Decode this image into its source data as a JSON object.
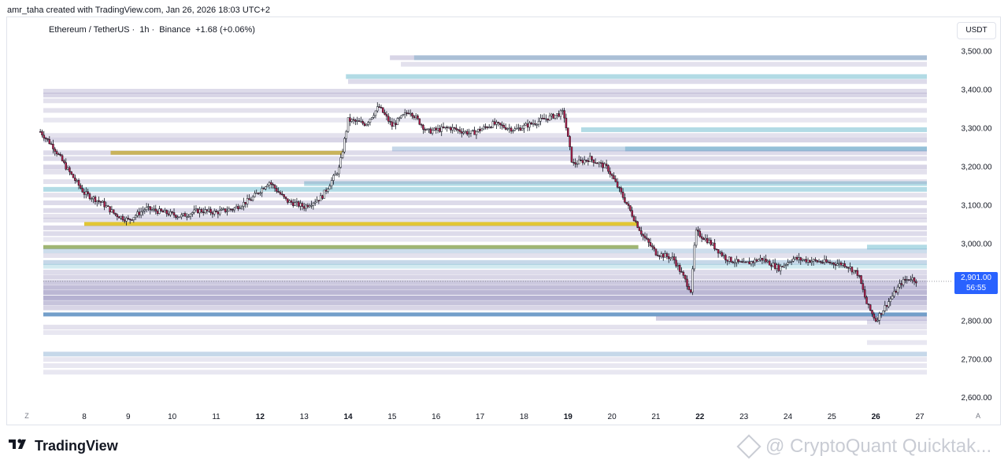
{
  "credit": "amr_taha created with TradingView.com, Jan 26, 2026 18:03 UTC+2",
  "legend": {
    "symbol": "Ethereum / TetherUS",
    "interval": "1h",
    "exchange": "Binance",
    "change": "+1.68 (+0.06%)"
  },
  "currency_label": "USDT",
  "price_tag": {
    "price": "2,901.00",
    "countdown": "56:55"
  },
  "axis_buttons": {
    "left": "Z",
    "right": "A"
  },
  "footer": {
    "brand": "TradingView",
    "watermark": "@ CryptoQuant Quicktak..."
  },
  "colors": {
    "up": "#26a69a",
    "down": "#b71c4a",
    "candle": "#131722",
    "liq_purple": "#8e87b8",
    "liq_blue": "#5b8ec1",
    "liq_teal": "#7ec3d3",
    "liq_yellow": "#e0c328",
    "liq_olive": "#8fa85a",
    "accent": "#2962ff"
  },
  "chart_data": {
    "type": "candlestick",
    "title": "Ethereum / TetherUS",
    "ylabel": "USDT",
    "ylim": [
      2560,
      3560
    ],
    "y_ticks": [
      {
        "value": 3500,
        "label": "3,500.00"
      },
      {
        "value": 3400,
        "label": "3,400.00"
      },
      {
        "value": 3300,
        "label": "3,300.00"
      },
      {
        "value": 3200,
        "label": "3,200.00"
      },
      {
        "value": 3100,
        "label": "3,100.00"
      },
      {
        "value": 3000,
        "label": "3,000.00"
      },
      {
        "value": 2800,
        "label": "2,800.00"
      },
      {
        "value": 2700,
        "label": "2,700.00"
      },
      {
        "value": 2600,
        "label": "2,600.00"
      }
    ],
    "x_ticks": [
      {
        "label": "8",
        "bold": false
      },
      {
        "label": "9",
        "bold": false
      },
      {
        "label": "10",
        "bold": false
      },
      {
        "label": "11",
        "bold": false
      },
      {
        "label": "12",
        "bold": true
      },
      {
        "label": "13",
        "bold": false
      },
      {
        "label": "14",
        "bold": true
      },
      {
        "label": "15",
        "bold": false
      },
      {
        "label": "16",
        "bold": false
      },
      {
        "label": "17",
        "bold": false
      },
      {
        "label": "18",
        "bold": false
      },
      {
        "label": "19",
        "bold": true
      },
      {
        "label": "20",
        "bold": false
      },
      {
        "label": "21",
        "bold": false
      },
      {
        "label": "22",
        "bold": true
      },
      {
        "label": "23",
        "bold": false
      },
      {
        "label": "24",
        "bold": false
      },
      {
        "label": "25",
        "bold": false
      },
      {
        "label": "26",
        "bold": true
      },
      {
        "label": "27",
        "bold": false
      }
    ],
    "x_range_days": [
      7.0,
      27.2
    ],
    "last_price": 2901.0,
    "price_path": [
      [
        7.0,
        3290
      ],
      [
        7.3,
        3250
      ],
      [
        7.6,
        3195
      ],
      [
        8.0,
        3130
      ],
      [
        8.4,
        3105
      ],
      [
        8.7,
        3075
      ],
      [
        9.0,
        3060
      ],
      [
        9.4,
        3090
      ],
      [
        9.8,
        3080
      ],
      [
        10.2,
        3070
      ],
      [
        10.6,
        3085
      ],
      [
        11.0,
        3080
      ],
      [
        11.4,
        3090
      ],
      [
        11.8,
        3115
      ],
      [
        12.2,
        3160
      ],
      [
        12.6,
        3110
      ],
      [
        13.0,
        3095
      ],
      [
        13.4,
        3120
      ],
      [
        13.8,
        3195
      ],
      [
        14.0,
        3320
      ],
      [
        14.4,
        3310
      ],
      [
        14.7,
        3355
      ],
      [
        15.0,
        3305
      ],
      [
        15.4,
        3345
      ],
      [
        15.8,
        3290
      ],
      [
        16.3,
        3300
      ],
      [
        16.8,
        3285
      ],
      [
        17.3,
        3310
      ],
      [
        17.8,
        3295
      ],
      [
        18.4,
        3320
      ],
      [
        18.9,
        3340
      ],
      [
        19.1,
        3205
      ],
      [
        19.5,
        3220
      ],
      [
        19.9,
        3195
      ],
      [
        20.3,
        3110
      ],
      [
        20.7,
        3020
      ],
      [
        21.0,
        2975
      ],
      [
        21.4,
        2960
      ],
      [
        21.8,
        2875
      ],
      [
        21.9,
        3030
      ],
      [
        22.2,
        3005
      ],
      [
        22.6,
        2960
      ],
      [
        23.0,
        2945
      ],
      [
        23.4,
        2960
      ],
      [
        23.8,
        2935
      ],
      [
        24.1,
        2960
      ],
      [
        24.5,
        2955
      ],
      [
        24.9,
        2950
      ],
      [
        25.3,
        2945
      ],
      [
        25.6,
        2920
      ],
      [
        25.8,
        2840
      ],
      [
        26.0,
        2800
      ],
      [
        26.3,
        2850
      ],
      [
        26.6,
        2900
      ],
      [
        26.8,
        2910
      ],
      [
        26.95,
        2901
      ]
    ],
    "liquidity_bands": [
      {
        "price": 3482,
        "x0": 15.5,
        "color": "teal",
        "opacity": 0.55
      },
      {
        "price": 3482,
        "x0": 14.95,
        "color": "purple",
        "opacity": 0.35
      },
      {
        "price": 3465,
        "x0": 15.2,
        "color": "purple",
        "opacity": 0.25
      },
      {
        "price": 3433,
        "x0": 13.95,
        "color": "teal",
        "opacity": 0.6
      },
      {
        "price": 3420,
        "x0": 14.0,
        "color": "purple",
        "opacity": 0.3
      },
      {
        "price": 3395,
        "x0": 7.0,
        "color": "purple",
        "opacity": 0.3
      },
      {
        "price": 3385,
        "x0": 7.0,
        "color": "purple",
        "opacity": 0.35
      },
      {
        "price": 3370,
        "x0": 7.0,
        "color": "purple",
        "opacity": 0.25
      },
      {
        "price": 3345,
        "x0": 7.0,
        "color": "purple",
        "opacity": 0.25
      },
      {
        "price": 3320,
        "x0": 7.0,
        "color": "purple",
        "opacity": 0.2
      },
      {
        "price": 3295,
        "x0": 19.3,
        "color": "teal",
        "opacity": 0.6
      },
      {
        "price": 3280,
        "x0": 7.0,
        "color": "purple",
        "opacity": 0.25
      },
      {
        "price": 3268,
        "x0": 7.0,
        "color": "purple",
        "opacity": 0.35
      },
      {
        "price": 3245,
        "x0": 20.3,
        "color": "teal",
        "opacity": 0.6
      },
      {
        "price": 3245,
        "x0": 15.0,
        "color": "blue",
        "opacity": 0.35
      },
      {
        "price": 3235,
        "x0": 8.6,
        "x1": 13.9,
        "color": "yellow",
        "opacity": 0.95
      },
      {
        "price": 3235,
        "x0": 7.0,
        "color": "purple",
        "opacity": 0.3
      },
      {
        "price": 3220,
        "x0": 7.0,
        "color": "purple",
        "opacity": 0.3
      },
      {
        "price": 3198,
        "x0": 7.0,
        "color": "purple",
        "opacity": 0.35
      },
      {
        "price": 3185,
        "x0": 7.0,
        "color": "purple",
        "opacity": 0.25
      },
      {
        "price": 3155,
        "x0": 13.0,
        "color": "teal",
        "opacity": 0.6
      },
      {
        "price": 3160,
        "x0": 7.0,
        "color": "purple",
        "opacity": 0.25
      },
      {
        "price": 3140,
        "x0": 7.0,
        "color": "teal",
        "opacity": 0.6
      },
      {
        "price": 3125,
        "x0": 7.0,
        "color": "purple",
        "opacity": 0.25
      },
      {
        "price": 3105,
        "x0": 7.0,
        "color": "purple",
        "opacity": 0.3
      },
      {
        "price": 3085,
        "x0": 7.0,
        "color": "purple",
        "opacity": 0.3
      },
      {
        "price": 3070,
        "x0": 7.0,
        "color": "purple",
        "opacity": 0.25
      },
      {
        "price": 3060,
        "x0": 7.0,
        "color": "purple",
        "opacity": 0.25
      },
      {
        "price": 3050,
        "x0": 8.0,
        "x1": 20.6,
        "color": "yellow",
        "opacity": 0.95
      },
      {
        "price": 3040,
        "x0": 7.0,
        "color": "purple",
        "opacity": 0.35
      },
      {
        "price": 3025,
        "x0": 7.0,
        "color": "purple",
        "opacity": 0.3
      },
      {
        "price": 3010,
        "x0": 7.0,
        "color": "purple",
        "opacity": 0.2
      },
      {
        "price": 2990,
        "x0": 25.8,
        "color": "teal",
        "opacity": 0.6
      },
      {
        "price": 2990,
        "x0": 7.0,
        "x1": 20.6,
        "color": "olive",
        "opacity": 0.85
      },
      {
        "price": 2980,
        "x0": 7.0,
        "color": "blue",
        "opacity": 0.3
      },
      {
        "price": 2968,
        "x0": 7.0,
        "color": "purple",
        "opacity": 0.25
      },
      {
        "price": 2950,
        "x0": 7.0,
        "color": "blue",
        "opacity": 0.35
      },
      {
        "price": 2940,
        "x0": 7.0,
        "color": "teal",
        "opacity": 0.35
      },
      {
        "price": 2925,
        "x0": 7.0,
        "color": "purple",
        "opacity": 0.3
      },
      {
        "price": 2912,
        "x0": 7.0,
        "color": "purple",
        "opacity": 0.35
      },
      {
        "price": 2898,
        "x0": 7.0,
        "color": "purple",
        "opacity": 0.45
      },
      {
        "price": 2885,
        "x0": 7.0,
        "color": "purple",
        "opacity": 0.55
      },
      {
        "price": 2872,
        "x0": 7.0,
        "color": "purple",
        "opacity": 0.6
      },
      {
        "price": 2858,
        "x0": 7.0,
        "color": "purple",
        "opacity": 0.65
      },
      {
        "price": 2845,
        "x0": 7.0,
        "color": "purple",
        "opacity": 0.5
      },
      {
        "price": 2832,
        "x0": 7.0,
        "color": "purple",
        "opacity": 0.35
      },
      {
        "price": 2815,
        "x0": 7.0,
        "color": "blue",
        "opacity": 0.85
      },
      {
        "price": 2805,
        "x0": 21.0,
        "color": "purple",
        "opacity": 0.4
      },
      {
        "price": 2795,
        "x0": 25.8,
        "color": "purple",
        "opacity": 0.3
      },
      {
        "price": 2782,
        "x0": 7.0,
        "color": "purple",
        "opacity": 0.25
      },
      {
        "price": 2768,
        "x0": 7.0,
        "color": "purple",
        "opacity": 0.2
      },
      {
        "price": 2742,
        "x0": 25.8,
        "color": "purple",
        "opacity": 0.2
      },
      {
        "price": 2712,
        "x0": 7.0,
        "color": "blue",
        "opacity": 0.35
      },
      {
        "price": 2698,
        "x0": 7.0,
        "color": "purple",
        "opacity": 0.2
      },
      {
        "price": 2682,
        "x0": 7.0,
        "color": "purple",
        "opacity": 0.2
      },
      {
        "price": 2665,
        "x0": 7.0,
        "color": "purple",
        "opacity": 0.2
      }
    ]
  }
}
